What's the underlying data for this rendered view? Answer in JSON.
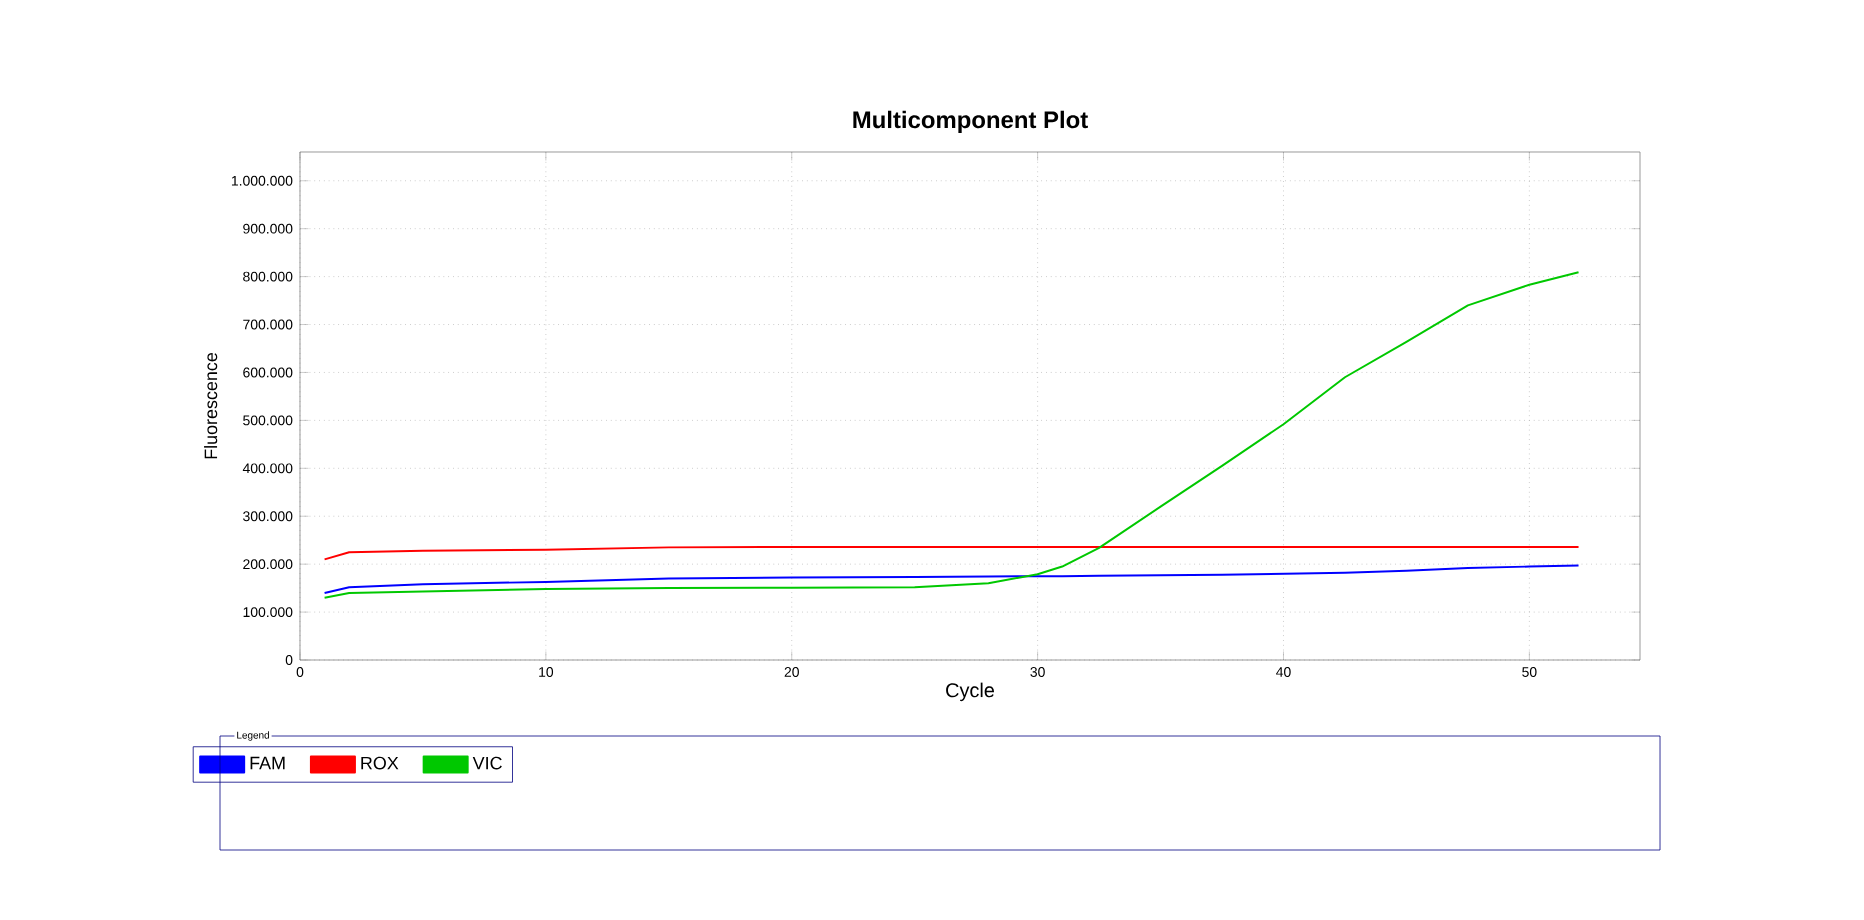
{
  "chart_data": {
    "type": "line",
    "title": "Multicomponent Plot",
    "xlabel": "Cycle",
    "ylabel": "Fluorescence",
    "legend_title": "Legend",
    "x": [
      1,
      2,
      5,
      10,
      15,
      20,
      25,
      28,
      30,
      31,
      32.5,
      35,
      37.5,
      40,
      42.5,
      45,
      47.5,
      50,
      52
    ],
    "series": [
      {
        "name": "FAM",
        "color": "#0000ff",
        "values": [
          140000,
          152000,
          158000,
          163000,
          170000,
          172000,
          173000,
          174000,
          175000,
          175000,
          176000,
          177000,
          178000,
          180000,
          182000,
          186000,
          192000,
          195000,
          197000
        ]
      },
      {
        "name": "ROX",
        "color": "#ff0000",
        "values": [
          210000,
          225000,
          228000,
          230000,
          235000,
          236000,
          236000,
          236000,
          236000,
          236000,
          236000,
          236000,
          236000,
          236000,
          236000,
          236000,
          236000,
          236000,
          236000
        ]
      },
      {
        "name": "VIC",
        "color": "#00c800",
        "values": [
          130000,
          140000,
          143000,
          148000,
          150000,
          151000,
          152000,
          160000,
          179000,
          195000,
          234000,
          320000,
          405000,
          492000,
          590000,
          664000,
          740000,
          783000,
          809000
        ]
      }
    ],
    "xlim": [
      0,
      54.5
    ],
    "ylim": [
      0,
      1060000
    ],
    "xticks": [
      0,
      10,
      20,
      30,
      40,
      50
    ],
    "yticks": [
      0,
      {
        "value": 100000,
        "label": "100.000"
      },
      {
        "value": 200000,
        "label": "200.000"
      },
      {
        "value": 300000,
        "label": "300.000"
      },
      {
        "value": 400000,
        "label": "400.000"
      },
      {
        "value": 500000,
        "label": "500.000"
      },
      {
        "value": 600000,
        "label": "600.000"
      },
      {
        "value": 700000,
        "label": "700.000"
      },
      {
        "value": 800000,
        "label": "800.000"
      },
      {
        "value": 900000,
        "label": "900.000"
      },
      {
        "value": 1000000,
        "label": "1.000.000"
      }
    ],
    "grid": true,
    "legend": "bottom",
    "marker": "none",
    "line_style": "solid"
  }
}
